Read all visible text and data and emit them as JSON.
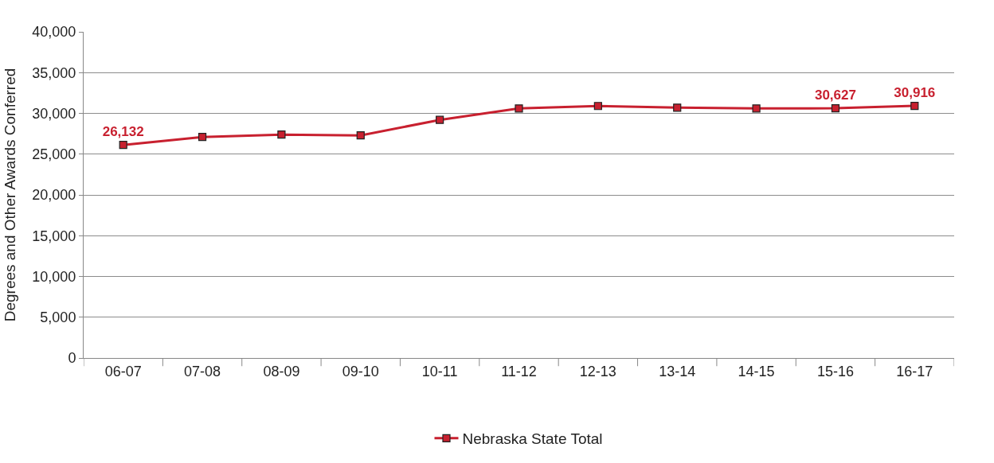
{
  "chart_data": {
    "type": "line",
    "ylabel": "Degrees and Other Awards Conferred",
    "categories": [
      "06-07",
      "07-08",
      "08-09",
      "09-10",
      "10-11",
      "11-12",
      "12-13",
      "13-14",
      "14-15",
      "15-16",
      "16-17"
    ],
    "series": [
      {
        "name": "Nebraska State Total",
        "color": "#c8202f",
        "values": [
          26132,
          27100,
          27400,
          27300,
          29200,
          30600,
          30900,
          30700,
          30600,
          30627,
          30916
        ],
        "value_labels": [
          "26,132",
          null,
          null,
          null,
          null,
          null,
          null,
          null,
          null,
          "30,627",
          "30,916"
        ]
      }
    ],
    "ylim": [
      0,
      40000
    ],
    "yticks": [
      {
        "value": 0,
        "label": "0"
      },
      {
        "value": 5000,
        "label": "5,000"
      },
      {
        "value": 10000,
        "label": "10,000"
      },
      {
        "value": 15000,
        "label": "15,000"
      },
      {
        "value": 20000,
        "label": "20,000"
      },
      {
        "value": 25000,
        "label": "25,000"
      },
      {
        "value": 30000,
        "label": "30,000"
      },
      {
        "value": 35000,
        "label": "35,000"
      },
      {
        "value": 40000,
        "label": "40,000"
      }
    ],
    "grid": "y",
    "legend": "bottom",
    "marker": "square",
    "line_style": "solid"
  }
}
